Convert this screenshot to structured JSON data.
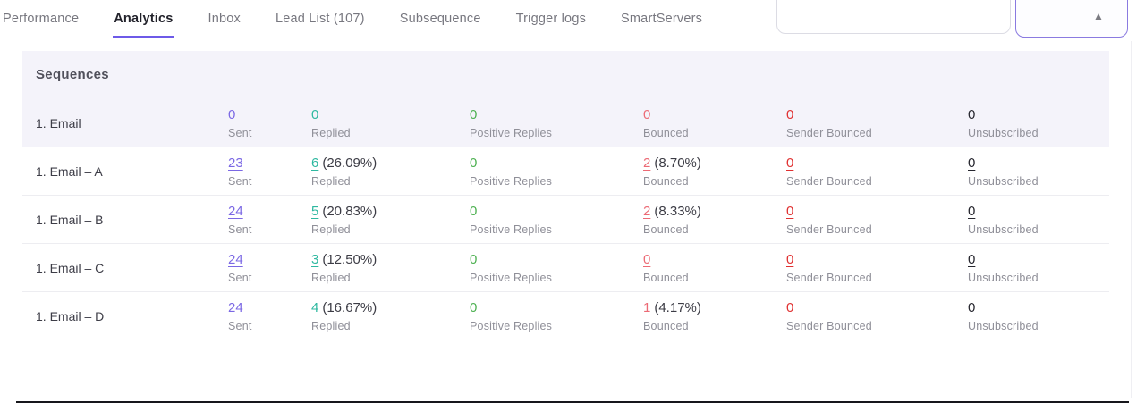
{
  "tabs": [
    {
      "label": "Performance",
      "active": false
    },
    {
      "label": "Analytics",
      "active": true
    },
    {
      "label": "Inbox",
      "active": false
    },
    {
      "label": "Lead List (107)",
      "active": false
    },
    {
      "label": "Subsequence",
      "active": false
    },
    {
      "label": "Trigger logs",
      "active": false
    },
    {
      "label": "SmartServers",
      "active": false
    }
  ],
  "panel": {
    "title": "Sequences",
    "collapse_icon": "▲"
  },
  "columns": [
    "Sent",
    "Replied",
    "Positive Replies",
    "Bounced",
    "Sender Bounced",
    "Unsubscribed"
  ],
  "rows": [
    {
      "name": "1. Email",
      "sent": "0",
      "replied": "0",
      "replied_pct": "",
      "positive": "0",
      "bounced": "0",
      "bounced_pct": "",
      "sender_bounced": "0",
      "unsubscribed": "0",
      "highlight": true
    },
    {
      "name": "1. Email – A",
      "sent": "23",
      "replied": "6",
      "replied_pct": "(26.09%)",
      "positive": "0",
      "bounced": "2",
      "bounced_pct": "(8.70%)",
      "sender_bounced": "0",
      "unsubscribed": "0",
      "highlight": false
    },
    {
      "name": "1. Email – B",
      "sent": "24",
      "replied": "5",
      "replied_pct": "(20.83%)",
      "positive": "0",
      "bounced": "2",
      "bounced_pct": "(8.33%)",
      "sender_bounced": "0",
      "unsubscribed": "0",
      "highlight": false
    },
    {
      "name": "1. Email – C",
      "sent": "24",
      "replied": "3",
      "replied_pct": "(12.50%)",
      "positive": "0",
      "bounced": "0",
      "bounced_pct": "",
      "sender_bounced": "0",
      "unsubscribed": "0",
      "highlight": false
    },
    {
      "name": "1. Email – D",
      "sent": "24",
      "replied": "4",
      "replied_pct": "(16.67%)",
      "positive": "0",
      "bounced": "1",
      "bounced_pct": "(4.17%)",
      "sender_bounced": "0",
      "unsubscribed": "0",
      "highlight": false
    }
  ],
  "colors": {
    "accent_purple": "#6d5ae8",
    "sent_purple": "#7b68e4",
    "replied_teal": "#2eb8a0",
    "positive_green": "#4cb050",
    "bounced_pink": "#ec6a75",
    "sender_bounced_red": "#e03131",
    "unsubscribed_dark": "#26262e",
    "panel_bg": "#f4f3fa"
  }
}
